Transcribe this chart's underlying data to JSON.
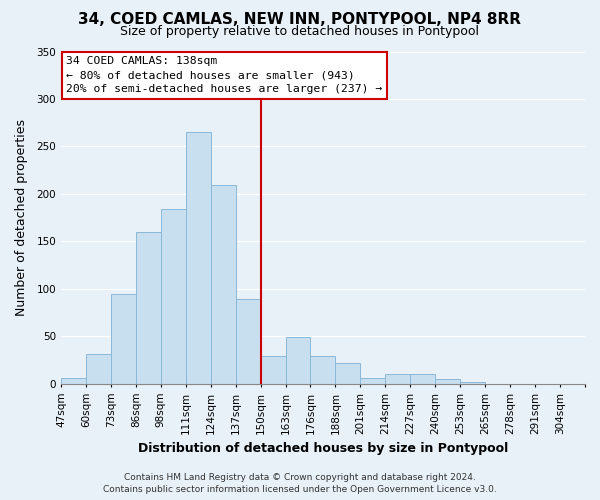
{
  "title": "34, COED CAMLAS, NEW INN, PONTYPOOL, NP4 8RR",
  "subtitle": "Size of property relative to detached houses in Pontypool",
  "xlabel": "Distribution of detached houses by size in Pontypool",
  "ylabel": "Number of detached properties",
  "bar_color": "#c8dff0",
  "bar_edge_color": "#8ab8d8",
  "categories": [
    "47sqm",
    "60sqm",
    "73sqm",
    "86sqm",
    "98sqm",
    "111sqm",
    "124sqm",
    "137sqm",
    "150sqm",
    "163sqm",
    "176sqm",
    "188sqm",
    "201sqm",
    "214sqm",
    "227sqm",
    "240sqm",
    "253sqm",
    "265sqm",
    "278sqm",
    "291sqm",
    "304sqm"
  ],
  "values": [
    6,
    32,
    95,
    160,
    184,
    265,
    209,
    89,
    29,
    49,
    29,
    22,
    6,
    10,
    10,
    5,
    2,
    0,
    0,
    0,
    0
  ],
  "marker_label": "137sqm",
  "marker_color": "#cc0000",
  "ylim": [
    0,
    350
  ],
  "yticks": [
    0,
    50,
    100,
    150,
    200,
    250,
    300,
    350
  ],
  "annotation_title": "34 COED CAMLAS: 138sqm",
  "annotation_line1": "← 80% of detached houses are smaller (943)",
  "annotation_line2": "20% of semi-detached houses are larger (237) →",
  "annotation_box_color": "#ffffff",
  "annotation_box_edge_color": "#cc0000",
  "footer1": "Contains HM Land Registry data © Crown copyright and database right 2024.",
  "footer2": "Contains public sector information licensed under the Open Government Licence v3.0.",
  "bg_color": "#e8f0f8",
  "plot_bg_color": "#e8f0f8",
  "grid_color": "#ffffff",
  "title_fontsize": 11,
  "subtitle_fontsize": 9,
  "tick_fontsize": 7.5,
  "label_fontsize": 9
}
